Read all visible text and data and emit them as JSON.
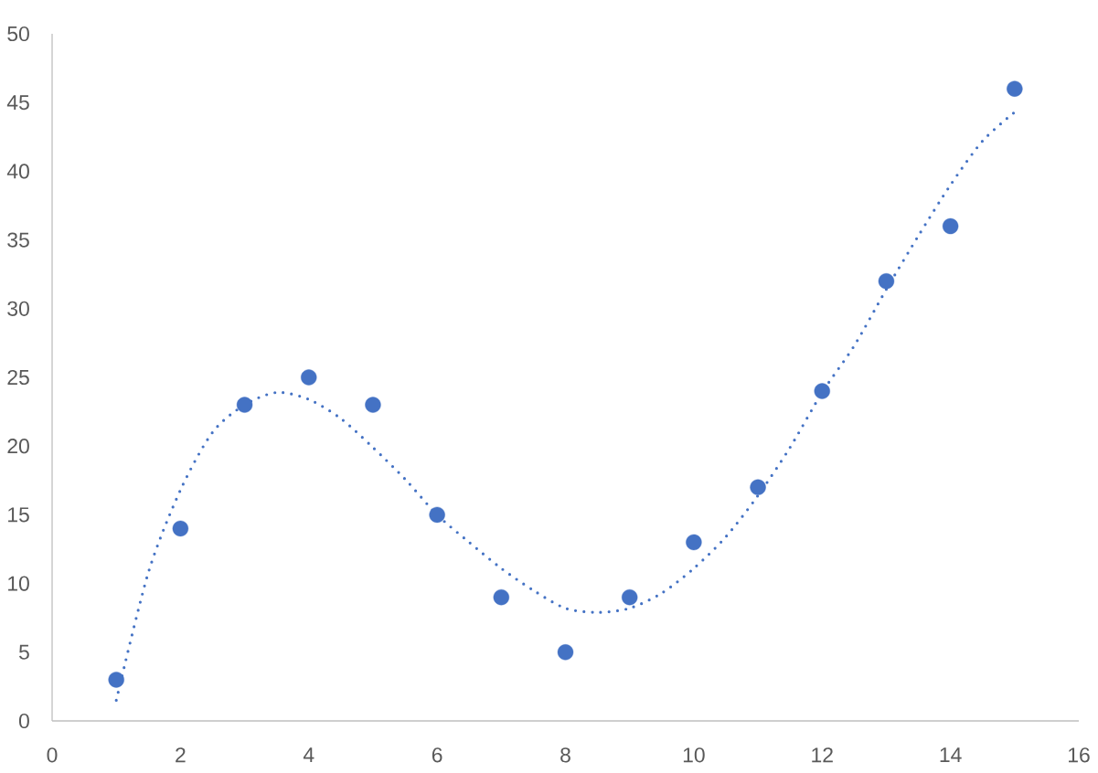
{
  "chart_data": {
    "type": "scatter",
    "marker": "circle",
    "xlim": [
      0,
      16
    ],
    "ylim": [
      0,
      50
    ],
    "xticks": [
      0,
      2,
      4,
      6,
      8,
      10,
      12,
      14,
      16
    ],
    "yticks": [
      0,
      5,
      10,
      15,
      20,
      25,
      30,
      35,
      40,
      45,
      50
    ],
    "series": [
      {
        "color": "#4472c4",
        "x": [
          1,
          2,
          3,
          4,
          5,
          6,
          7,
          8,
          9,
          10,
          11,
          12,
          13,
          14,
          15
        ],
        "values": [
          3,
          14,
          23,
          25,
          23,
          15,
          9,
          5,
          9,
          13,
          17,
          24,
          32,
          36,
          46
        ]
      },
      {
        "type": "line",
        "color": "#4472c4",
        "marker": "none",
        "line_style": "dotted",
        "x": [
          1,
          1.5,
          2,
          2.5,
          3,
          3.5,
          4,
          4.5,
          5,
          5.5,
          6,
          6.5,
          7,
          7.5,
          8,
          8.5,
          9,
          9.5,
          10,
          10.5,
          11,
          11.5,
          12,
          12.5,
          13,
          13.5,
          14,
          14.5,
          15
        ],
        "values": [
          1.5,
          10.8,
          16.8,
          21.0,
          23.0,
          23.9,
          23.4,
          22.0,
          19.9,
          17.6,
          15.0,
          13.0,
          11.1,
          9.5,
          8.2,
          7.9,
          8.2,
          9.3,
          11.1,
          13.4,
          16.4,
          19.9,
          23.9,
          27.3,
          31.4,
          35.3,
          39.0,
          42.2,
          44.3
        ]
      }
    ]
  }
}
